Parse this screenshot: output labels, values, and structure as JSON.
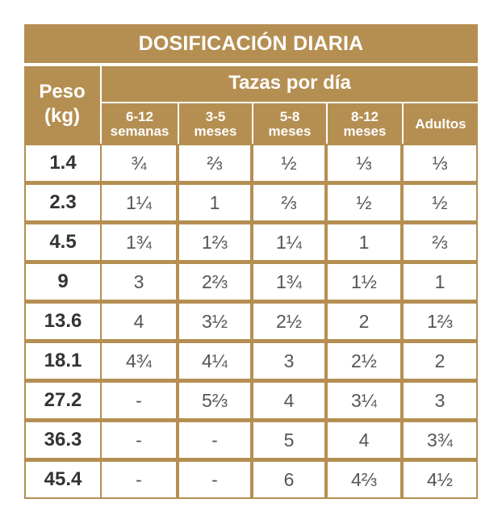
{
  "table": {
    "title": "DOSIFICACIÓN DIARIA",
    "peso_header": {
      "line1": "Peso",
      "line2": "(kg)"
    },
    "tazas_header": "Tazas por día",
    "columns": [
      {
        "line1": "6-12",
        "line2": "semanas"
      },
      {
        "line1": "3-5",
        "line2": "meses"
      },
      {
        "line1": "5-8",
        "line2": "meses"
      },
      {
        "line1": "8-12",
        "line2": "meses"
      },
      {
        "line1": "Adultos",
        "line2": ""
      }
    ],
    "rows": [
      {
        "peso": "1.4",
        "values": [
          "¾",
          "⅔",
          "½",
          "⅓",
          "⅓"
        ]
      },
      {
        "peso": "2.3",
        "values": [
          "1¼",
          "1",
          "⅔",
          "½",
          "½"
        ]
      },
      {
        "peso": "4.5",
        "values": [
          "1¾",
          "1⅔",
          "1¼",
          "1",
          "⅔"
        ]
      },
      {
        "peso": "9",
        "values": [
          "3",
          "2⅔",
          "1¾",
          "1½",
          "1"
        ]
      },
      {
        "peso": "13.6",
        "values": [
          "4",
          "3½",
          "2½",
          "2",
          "1⅔"
        ]
      },
      {
        "peso": "18.1",
        "values": [
          "4¾",
          "4¼",
          "3",
          "2½",
          "2"
        ]
      },
      {
        "peso": "27.2",
        "values": [
          "-",
          "5⅔",
          "4",
          "3¼",
          "3"
        ]
      },
      {
        "peso": "36.3",
        "values": [
          "-",
          "-",
          "5",
          "4",
          "3¾"
        ]
      },
      {
        "peso": "45.4",
        "values": [
          "-",
          "-",
          "6",
          "4⅔",
          "4½"
        ]
      }
    ]
  },
  "colors": {
    "header_bg": "#b58f52",
    "cell_bg": "#ffffff",
    "text_dark": "#333333",
    "text_values": "#555555"
  }
}
